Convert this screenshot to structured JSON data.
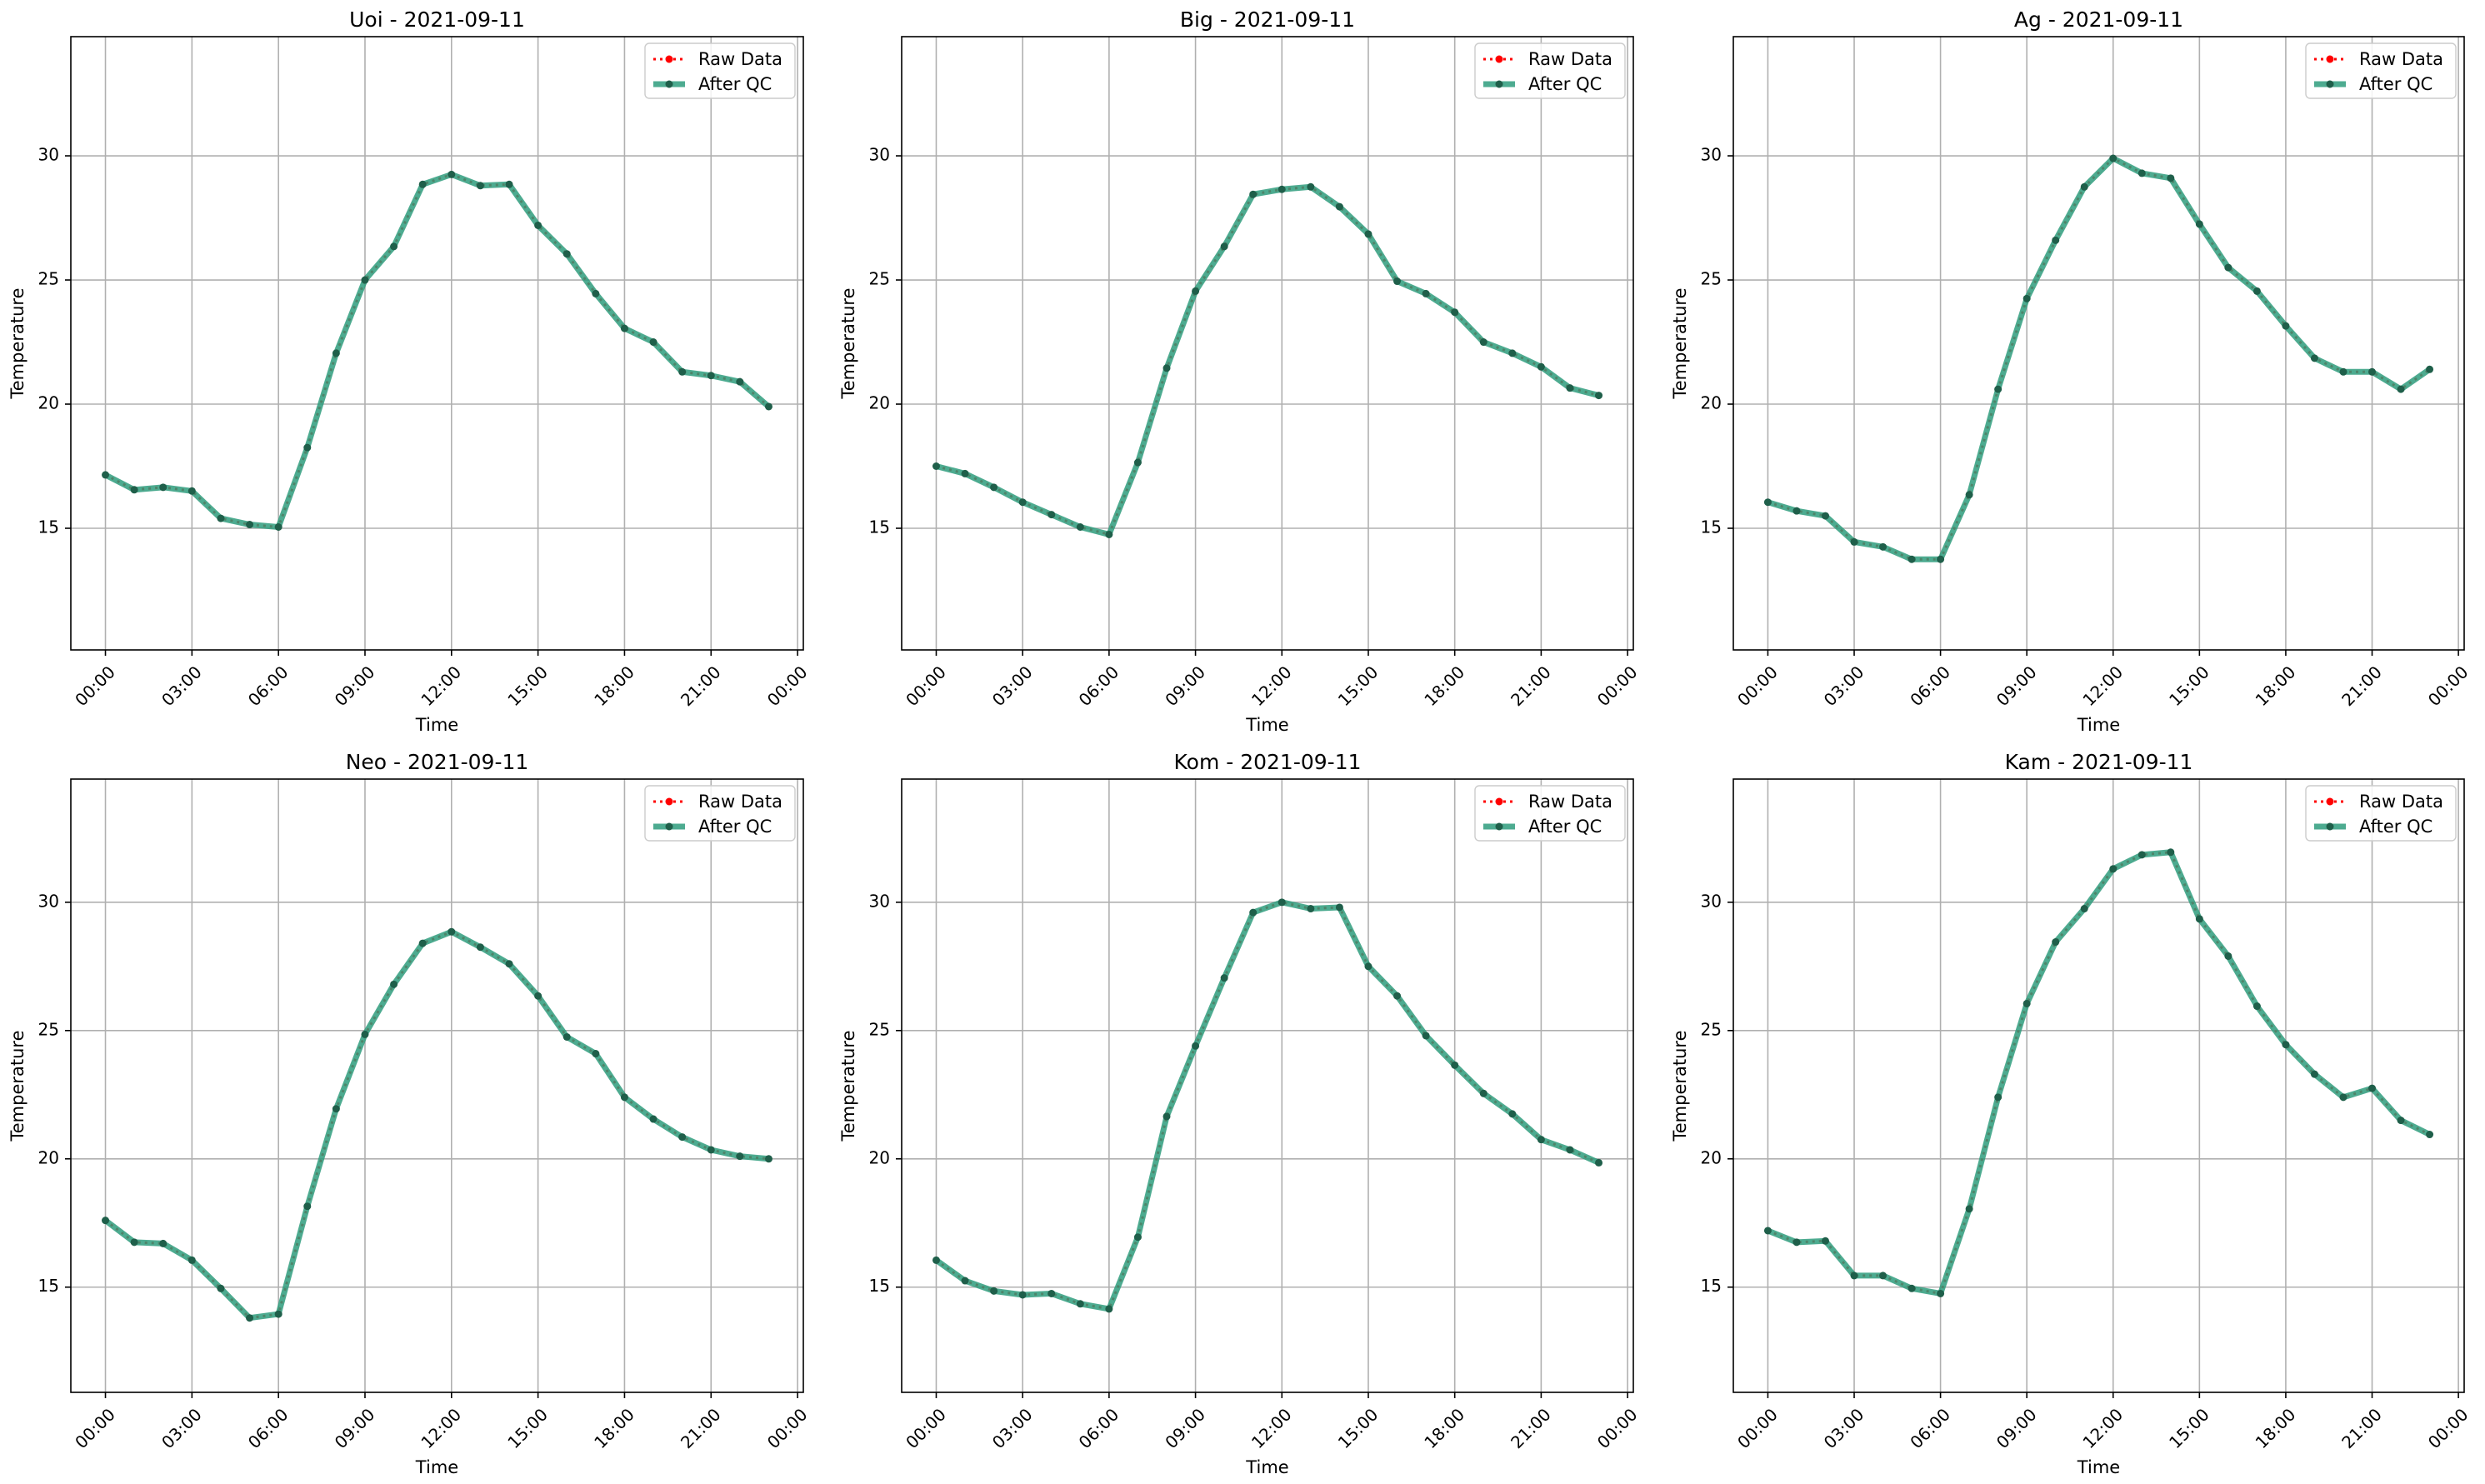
{
  "figure": {
    "x_ticks": [
      "00:00",
      "03:00",
      "06:00",
      "09:00",
      "12:00",
      "15:00",
      "18:00",
      "21:00",
      "00:00"
    ],
    "y_ticks": [
      15,
      20,
      25,
      30
    ],
    "legend": {
      "raw_label": "Raw Data",
      "qc_label": "After QC"
    },
    "colors": {
      "raw": "#ff0000",
      "after_qc": "#2e9c7c",
      "marker": "#1f5f4a",
      "grid": "#b0b0b0"
    }
  },
  "chart_data": [
    {
      "type": "line",
      "title": "Uoi - 2021-09-11",
      "xlabel": "Time",
      "ylabel": "Temperature",
      "x_unit": "hour of day",
      "x": [
        0,
        1,
        2,
        3,
        4,
        5,
        6,
        7,
        8,
        9,
        10,
        11,
        12,
        13,
        14,
        15,
        16,
        17,
        18,
        19,
        20,
        21,
        22,
        23
      ],
      "xlim": [
        -1.2,
        24.2
      ],
      "ylim": [
        10.1,
        34.8
      ],
      "grid": true,
      "legend_position": "upper right",
      "series": [
        {
          "name": "Raw Data",
          "values": [
            17.15,
            16.55,
            16.65,
            16.5,
            15.4,
            15.15,
            15.05,
            18.25,
            22.05,
            25.0,
            26.35,
            28.85,
            29.25,
            28.8,
            28.85,
            27.2,
            26.05,
            24.45,
            23.05,
            22.5,
            21.3,
            21.15,
            20.9,
            19.9
          ]
        },
        {
          "name": "After QC",
          "values": [
            17.15,
            16.55,
            16.65,
            16.5,
            15.4,
            15.15,
            15.05,
            18.25,
            22.05,
            25.0,
            26.35,
            28.85,
            29.25,
            28.8,
            28.85,
            27.2,
            26.05,
            24.45,
            23.05,
            22.5,
            21.3,
            21.15,
            20.9,
            19.9
          ]
        }
      ]
    },
    {
      "type": "line",
      "title": "Big - 2021-09-11",
      "xlabel": "Time",
      "ylabel": "Temperature",
      "x_unit": "hour of day",
      "x": [
        0,
        1,
        2,
        3,
        4,
        5,
        6,
        7,
        8,
        9,
        10,
        11,
        12,
        13,
        14,
        15,
        16,
        17,
        18,
        19,
        20,
        21,
        22,
        23
      ],
      "xlim": [
        -1.2,
        24.2
      ],
      "ylim": [
        10.1,
        34.8
      ],
      "grid": true,
      "legend_position": "upper right",
      "series": [
        {
          "name": "Raw Data",
          "values": [
            17.5,
            17.2,
            16.65,
            16.05,
            15.55,
            15.05,
            14.75,
            17.65,
            21.45,
            24.55,
            26.35,
            28.45,
            28.65,
            28.75,
            27.95,
            26.85,
            24.95,
            24.45,
            23.7,
            22.5,
            22.05,
            21.5,
            20.65,
            20.35
          ]
        },
        {
          "name": "After QC",
          "values": [
            17.5,
            17.2,
            16.65,
            16.05,
            15.55,
            15.05,
            14.75,
            17.65,
            21.45,
            24.55,
            26.35,
            28.45,
            28.65,
            28.75,
            27.95,
            26.85,
            24.95,
            24.45,
            23.7,
            22.5,
            22.05,
            21.5,
            20.65,
            20.35
          ]
        }
      ]
    },
    {
      "type": "line",
      "title": "Ag - 2021-09-11",
      "xlabel": "Time",
      "ylabel": "Temperature",
      "x_unit": "hour of day",
      "x": [
        0,
        1,
        2,
        3,
        4,
        5,
        6,
        7,
        8,
        9,
        10,
        11,
        12,
        13,
        14,
        15,
        16,
        17,
        18,
        19,
        20,
        21,
        22,
        23
      ],
      "xlim": [
        -1.2,
        24.2
      ],
      "ylim": [
        10.1,
        34.8
      ],
      "grid": true,
      "legend_position": "upper right",
      "series": [
        {
          "name": "Raw Data",
          "values": [
            16.05,
            15.7,
            15.5,
            14.45,
            14.25,
            13.75,
            13.75,
            16.35,
            20.6,
            24.25,
            26.6,
            28.75,
            29.9,
            29.3,
            29.1,
            27.25,
            25.5,
            24.55,
            23.15,
            21.85,
            21.3,
            21.3,
            20.6,
            21.4
          ]
        },
        {
          "name": "After QC",
          "values": [
            16.05,
            15.7,
            15.5,
            14.45,
            14.25,
            13.75,
            13.75,
            16.35,
            20.6,
            24.25,
            26.6,
            28.75,
            29.9,
            29.3,
            29.1,
            27.25,
            25.5,
            24.55,
            23.15,
            21.85,
            21.3,
            21.3,
            20.6,
            21.4
          ]
        }
      ]
    },
    {
      "type": "line",
      "title": "Neo - 2021-09-11",
      "xlabel": "Time",
      "ylabel": "Temperature",
      "x_unit": "hour of day",
      "x": [
        0,
        1,
        2,
        3,
        4,
        5,
        6,
        7,
        8,
        9,
        10,
        11,
        12,
        13,
        14,
        15,
        16,
        17,
        18,
        19,
        20,
        21,
        22,
        23
      ],
      "xlim": [
        -1.2,
        24.2
      ],
      "ylim": [
        10.9,
        34.8
      ],
      "grid": true,
      "legend_position": "upper right",
      "series": [
        {
          "name": "Raw Data",
          "values": [
            17.6,
            16.75,
            16.7,
            16.05,
            14.95,
            13.8,
            13.95,
            18.15,
            21.95,
            24.85,
            26.8,
            28.4,
            28.85,
            28.25,
            27.6,
            26.35,
            24.75,
            24.1,
            22.4,
            21.55,
            20.85,
            20.35,
            20.1,
            20.0
          ]
        },
        {
          "name": "After QC",
          "values": [
            17.6,
            16.75,
            16.7,
            16.05,
            14.95,
            13.8,
            13.95,
            18.15,
            21.95,
            24.85,
            26.8,
            28.4,
            28.85,
            28.25,
            27.6,
            26.35,
            24.75,
            24.1,
            22.4,
            21.55,
            20.85,
            20.35,
            20.1,
            20.0
          ]
        }
      ]
    },
    {
      "type": "line",
      "title": "Kom - 2021-09-11",
      "xlabel": "Time",
      "ylabel": "Temperature",
      "x_unit": "hour of day",
      "x": [
        0,
        1,
        2,
        3,
        4,
        5,
        6,
        7,
        8,
        9,
        10,
        11,
        12,
        13,
        14,
        15,
        16,
        17,
        18,
        19,
        20,
        21,
        22,
        23
      ],
      "xlim": [
        -1.2,
        24.2
      ],
      "ylim": [
        10.9,
        34.8
      ],
      "grid": true,
      "legend_position": "upper right",
      "series": [
        {
          "name": "Raw Data",
          "values": [
            16.05,
            15.25,
            14.85,
            14.7,
            14.75,
            14.35,
            14.15,
            16.95,
            21.65,
            24.4,
            27.05,
            29.6,
            30.0,
            29.75,
            29.8,
            27.5,
            26.35,
            24.8,
            23.65,
            22.55,
            21.75,
            20.75,
            20.35,
            19.85
          ]
        },
        {
          "name": "After QC",
          "values": [
            16.05,
            15.25,
            14.85,
            14.7,
            14.75,
            14.35,
            14.15,
            16.95,
            21.65,
            24.4,
            27.05,
            29.6,
            30.0,
            29.75,
            29.8,
            27.5,
            26.35,
            24.8,
            23.65,
            22.55,
            21.75,
            20.75,
            20.35,
            19.85
          ]
        }
      ]
    },
    {
      "type": "line",
      "title": "Kam - 2021-09-11",
      "xlabel": "Time",
      "ylabel": "Temperature",
      "x_unit": "hour of day",
      "x": [
        0,
        1,
        2,
        3,
        4,
        5,
        6,
        7,
        8,
        9,
        10,
        11,
        12,
        13,
        14,
        15,
        16,
        17,
        18,
        19,
        20,
        21,
        22,
        23
      ],
      "xlim": [
        -1.2,
        24.2
      ],
      "ylim": [
        10.9,
        34.8
      ],
      "grid": true,
      "legend_position": "upper right",
      "series": [
        {
          "name": "Raw Data",
          "values": [
            17.2,
            16.75,
            16.8,
            15.45,
            15.45,
            14.95,
            14.75,
            18.05,
            22.4,
            26.05,
            28.45,
            29.75,
            31.3,
            31.85,
            31.95,
            29.35,
            27.9,
            25.95,
            24.45,
            23.3,
            22.4,
            22.75,
            21.5,
            20.95
          ]
        },
        {
          "name": "After QC",
          "values": [
            17.2,
            16.75,
            16.8,
            15.45,
            15.45,
            14.95,
            14.75,
            18.05,
            22.4,
            26.05,
            28.45,
            29.75,
            31.3,
            31.85,
            31.95,
            29.35,
            27.9,
            25.95,
            24.45,
            23.3,
            22.4,
            22.75,
            21.5,
            20.95
          ]
        }
      ]
    }
  ]
}
